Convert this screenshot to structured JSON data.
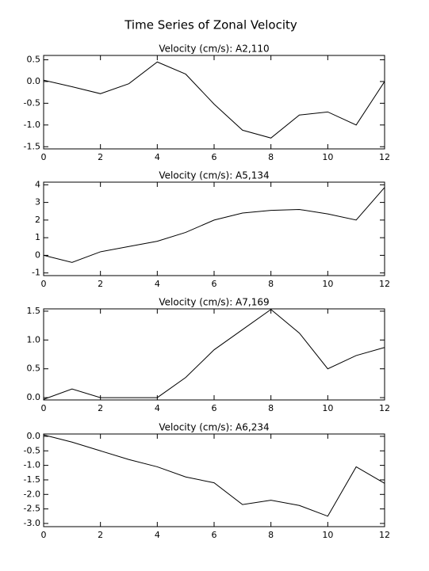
{
  "title": "Time Series of Zonal Velocity",
  "chart_data": [
    {
      "type": "line",
      "title": "Velocity (cm/s): A2,110",
      "color": "#000000",
      "x": [
        0,
        1,
        2,
        3,
        4,
        5,
        6,
        7,
        8,
        9,
        10,
        11,
        12
      ],
      "values": [
        0.03,
        -0.12,
        -0.28,
        -0.05,
        0.45,
        0.17,
        -0.52,
        -1.12,
        -1.3,
        -0.77,
        -0.7,
        -1.0,
        0.0
      ],
      "xlim": [
        0,
        12
      ],
      "xticks": [
        0,
        2,
        4,
        6,
        8,
        10,
        12
      ],
      "ylim": [
        -1.55,
        0.6
      ],
      "yticks": [
        -1.5,
        {
          "value": -1.0,
          "label": "-1.0"
        },
        -0.5,
        {
          "value": 0.0,
          "label": "0.0"
        },
        0.5
      ]
    },
    {
      "type": "line",
      "title": "Velocity (cm/s): A5,134",
      "color": "#000000",
      "x": [
        0,
        1,
        2,
        3,
        4,
        5,
        6,
        7,
        8,
        9,
        10,
        11,
        12
      ],
      "values": [
        0.0,
        -0.4,
        0.2,
        0.5,
        0.8,
        1.3,
        2.0,
        2.4,
        2.55,
        2.6,
        2.35,
        2.0,
        3.85
      ],
      "xlim": [
        0,
        12
      ],
      "xticks": [
        0,
        2,
        4,
        6,
        8,
        10,
        12
      ],
      "ylim": [
        -1.15,
        4.15
      ],
      "yticks": [
        -1,
        0,
        1,
        2,
        3,
        4
      ]
    },
    {
      "type": "line",
      "title": "Velocity (cm/s): A7,169",
      "color": "#000000",
      "x": [
        0,
        1,
        2,
        3,
        4,
        5,
        6,
        7,
        8,
        9,
        10,
        11,
        12
      ],
      "values": [
        -0.03,
        0.15,
        0.0,
        0.0,
        0.0,
        0.35,
        0.83,
        1.18,
        1.53,
        1.12,
        0.5,
        0.73,
        0.87
      ],
      "xlim": [
        0,
        12
      ],
      "xticks": [
        0,
        2,
        4,
        6,
        8,
        10,
        12
      ],
      "ylim": [
        -0.04,
        1.54
      ],
      "yticks": [
        {
          "value": 0.0,
          "label": "0.0"
        },
        0.5,
        {
          "value": 1.0,
          "label": "1.0"
        },
        1.5
      ]
    },
    {
      "type": "line",
      "title": "Velocity (cm/s): A6,234",
      "color": "#000000",
      "x": [
        0,
        1,
        2,
        3,
        4,
        5,
        6,
        7,
        8,
        9,
        10,
        11,
        12
      ],
      "values": [
        0.05,
        -0.2,
        -0.5,
        -0.8,
        -1.05,
        -1.4,
        -1.6,
        -2.35,
        -2.2,
        -2.38,
        -2.75,
        -1.05,
        -1.62
      ],
      "xlim": [
        0,
        12
      ],
      "xticks": [
        0,
        2,
        4,
        6,
        8,
        10,
        12
      ],
      "ylim": [
        -3.11,
        0.08
      ],
      "yticks": [
        {
          "value": -3.0,
          "label": "-3.0"
        },
        -2.5,
        {
          "value": -2.0,
          "label": "-2.0"
        },
        -1.5,
        {
          "value": -1.0,
          "label": "-1.0"
        },
        -0.5,
        {
          "value": 0.0,
          "label": "0.0"
        }
      ]
    }
  ]
}
